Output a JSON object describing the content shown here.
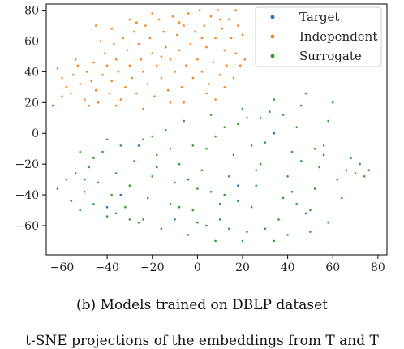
{
  "caption": "(b) Models trained on DBLP dataset",
  "clipped_text": "t-SNE projections of the embeddings from T and T",
  "chart_data": {
    "type": "scatter",
    "title": "",
    "xlabel": "",
    "ylabel": "",
    "xlim": [
      -67,
      84
    ],
    "ylim": [
      -79,
      84
    ],
    "xticks": [
      -60,
      -40,
      -20,
      0,
      20,
      40,
      60,
      80
    ],
    "yticks": [
      -60,
      -40,
      -20,
      0,
      20,
      40,
      60,
      80
    ],
    "xtick_labels": [
      "−60",
      "−40",
      "−20",
      "0",
      "20",
      "40",
      "60",
      "80"
    ],
    "ytick_labels": [
      "−60",
      "−40",
      "−20",
      "0",
      "20",
      "40",
      "60",
      "80"
    ],
    "grid": false,
    "legend": {
      "position": "upper-right",
      "entries": [
        "Target",
        "Independent",
        "Surrogate"
      ]
    },
    "colors": {
      "Target": "#1f77b4",
      "Independent": "#ff7f0e",
      "Surrogate": "#2ca02c"
    },
    "series": [
      {
        "name": "Independent",
        "color": "#ff7f0e",
        "points": [
          [
            -62,
            42
          ],
          [
            -60,
            36
          ],
          [
            -58,
            30
          ],
          [
            -56,
            26
          ],
          [
            -55,
            38
          ],
          [
            -53,
            44
          ],
          [
            -52,
            32
          ],
          [
            -50,
            22
          ],
          [
            -49,
            40
          ],
          [
            -47,
            34
          ],
          [
            -46,
            46
          ],
          [
            -45,
            28
          ],
          [
            -44,
            20
          ],
          [
            -42,
            38
          ],
          [
            -41,
            52
          ],
          [
            -40,
            44
          ],
          [
            -39,
            26
          ],
          [
            -38,
            34
          ],
          [
            -37,
            58
          ],
          [
            -36,
            48
          ],
          [
            -35,
            40
          ],
          [
            -34,
            22
          ],
          [
            -33,
            62
          ],
          [
            -32,
            30
          ],
          [
            -31,
            54
          ],
          [
            -30,
            44
          ],
          [
            -29,
            36
          ],
          [
            -28,
            66
          ],
          [
            -27,
            26
          ],
          [
            -26,
            58
          ],
          [
            -25,
            48
          ],
          [
            -24,
            40
          ],
          [
            -23,
            70
          ],
          [
            -22,
            32
          ],
          [
            -21,
            62
          ],
          [
            -20,
            52
          ],
          [
            -19,
            24
          ],
          [
            -18,
            44
          ],
          [
            -17,
            74
          ],
          [
            -16,
            36
          ],
          [
            -15,
            66
          ],
          [
            -14,
            56
          ],
          [
            -13,
            28
          ],
          [
            -12,
            48
          ],
          [
            -11,
            76
          ],
          [
            -10,
            40
          ],
          [
            -9,
            64
          ],
          [
            -8,
            54
          ],
          [
            -7,
            30
          ],
          [
            -6,
            70
          ],
          [
            -5,
            44
          ],
          [
            -4,
            78
          ],
          [
            -3,
            58
          ],
          [
            -2,
            36
          ],
          [
            -1,
            66
          ],
          [
            0,
            48
          ],
          [
            1,
            80
          ],
          [
            2,
            40
          ],
          [
            3,
            70
          ],
          [
            4,
            56
          ],
          [
            5,
            32
          ],
          [
            6,
            76
          ],
          [
            7,
            46
          ],
          [
            8,
            62
          ],
          [
            9,
            80
          ],
          [
            10,
            38
          ],
          [
            11,
            68
          ],
          [
            12,
            54
          ],
          [
            13,
            44
          ],
          [
            14,
            74
          ],
          [
            15,
            62
          ],
          [
            16,
            36
          ],
          [
            17,
            52
          ],
          [
            18,
            70
          ],
          [
            19,
            44
          ],
          [
            20,
            64
          ],
          [
            21,
            48
          ],
          [
            -43,
            60
          ],
          [
            -38,
            68
          ],
          [
            -27,
            72
          ],
          [
            -16,
            50
          ],
          [
            -8,
            72
          ],
          [
            2,
            62
          ],
          [
            10,
            74
          ],
          [
            -54,
            48
          ],
          [
            -48,
            18
          ],
          [
            -36,
            18
          ],
          [
            -24,
            16
          ],
          [
            -12,
            20
          ],
          [
            4,
            26
          ],
          [
            12,
            30
          ],
          [
            -30,
            74
          ],
          [
            -60,
            24
          ],
          [
            -20,
            78
          ],
          [
            17,
            80
          ],
          [
            -45,
            70
          ],
          [
            8,
            22
          ],
          [
            -6,
            20
          ]
        ]
      },
      {
        "name": "Surrogate",
        "color": "#2ca02c",
        "points": [
          [
            -64,
            18
          ],
          [
            -62,
            -36
          ],
          [
            -58,
            -30
          ],
          [
            -56,
            -44
          ],
          [
            -54,
            -26
          ],
          [
            -52,
            -50
          ],
          [
            -50,
            -38
          ],
          [
            -48,
            -22
          ],
          [
            -46,
            -46
          ],
          [
            -44,
            -32
          ],
          [
            -42,
            -12
          ],
          [
            -40,
            -54
          ],
          [
            -38,
            -40
          ],
          [
            -36,
            -26
          ],
          [
            -34,
            -8
          ],
          [
            -32,
            -48
          ],
          [
            -30,
            -34
          ],
          [
            -28,
            -18
          ],
          [
            -26,
            -58
          ],
          [
            -24,
            -4
          ],
          [
            -22,
            -42
          ],
          [
            -20,
            -28
          ],
          [
            -18,
            -14
          ],
          [
            -16,
            -62
          ],
          [
            -14,
            2
          ],
          [
            -12,
            -46
          ],
          [
            -10,
            -32
          ],
          [
            -8,
            -20
          ],
          [
            -6,
            8
          ],
          [
            -4,
            -66
          ],
          [
            -2,
            -50
          ],
          [
            0,
            -36
          ],
          [
            2,
            -24
          ],
          [
            4,
            -10
          ],
          [
            6,
            12
          ],
          [
            8,
            -70
          ],
          [
            10,
            -56
          ],
          [
            12,
            -40
          ],
          [
            14,
            -28
          ],
          [
            16,
            -14
          ],
          [
            18,
            6
          ],
          [
            20,
            16
          ],
          [
            22,
            -64
          ],
          [
            24,
            -48
          ],
          [
            26,
            -34
          ],
          [
            28,
            -20
          ],
          [
            30,
            -6
          ],
          [
            32,
            14
          ],
          [
            34,
            22
          ],
          [
            36,
            -56
          ],
          [
            38,
            -42
          ],
          [
            40,
            -28
          ],
          [
            42,
            -12
          ],
          [
            44,
            4
          ],
          [
            46,
            18
          ],
          [
            48,
            26
          ],
          [
            50,
            -50
          ],
          [
            52,
            -36
          ],
          [
            54,
            -22
          ],
          [
            56,
            -8
          ],
          [
            58,
            8
          ],
          [
            60,
            20
          ],
          [
            62,
            -30
          ],
          [
            64,
            -42
          ],
          [
            66,
            -24
          ],
          [
            68,
            -16
          ],
          [
            70,
            -26
          ],
          [
            72,
            -20
          ],
          [
            74,
            -28
          ],
          [
            76,
            -24
          ],
          [
            -46,
            -16
          ],
          [
            -36,
            -52
          ],
          [
            -24,
            -56
          ],
          [
            -12,
            -10
          ],
          [
            -2,
            -8
          ],
          [
            8,
            -2
          ],
          [
            18,
            -44
          ],
          [
            30,
            -62
          ],
          [
            40,
            -66
          ],
          [
            52,
            -10
          ],
          [
            58,
            -58
          ],
          [
            44,
            -46
          ],
          [
            24,
            -8
          ],
          [
            12,
            4
          ],
          [
            -20,
            -2
          ],
          [
            -30,
            -56
          ],
          [
            -52,
            -12
          ],
          [
            34,
            -70
          ],
          [
            0,
            -58
          ],
          [
            20,
            -70
          ],
          [
            46,
            -18
          ],
          [
            28,
            10
          ],
          [
            6,
            -38
          ],
          [
            -8,
            -48
          ],
          [
            -40,
            -4
          ],
          [
            14,
            -62
          ],
          [
            38,
            12
          ],
          [
            50,
            -64
          ]
        ]
      },
      {
        "name": "Target",
        "color": "#1f77b4",
        "points": [
          [
            -50,
            -30
          ],
          [
            -34,
            -40
          ],
          [
            -18,
            -22
          ],
          [
            -4,
            -30
          ],
          [
            10,
            -46
          ],
          [
            26,
            -24
          ],
          [
            42,
            -38
          ],
          [
            56,
            -14
          ],
          [
            -26,
            -8
          ],
          [
            4,
            -60
          ],
          [
            34,
            0
          ],
          [
            18,
            -34
          ],
          [
            -40,
            -48
          ],
          [
            48,
            -52
          ],
          [
            -10,
            -56
          ],
          [
            22,
            10
          ]
        ]
      }
    ]
  }
}
